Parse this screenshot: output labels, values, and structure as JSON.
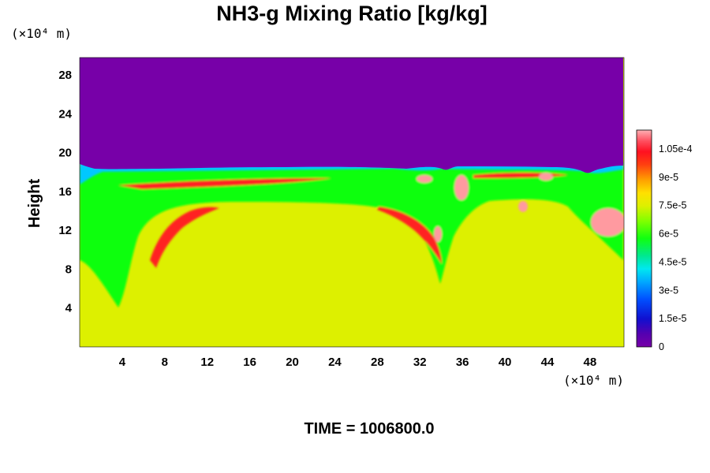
{
  "chart_data": {
    "type": "heatmap",
    "title": "NH3-g Mixing Ratio [kg/kg]",
    "ylabel": "Height",
    "x_unit": "(×10⁴ m)",
    "y_unit": "(×10⁴ m)",
    "x_ticks": [
      "4",
      "8",
      "12",
      "16",
      "20",
      "24",
      "28",
      "32",
      "36",
      "40",
      "44",
      "48"
    ],
    "x_tick_values": [
      4,
      8,
      12,
      16,
      20,
      24,
      28,
      32,
      36,
      40,
      44,
      48
    ],
    "y_ticks": [
      "4",
      "8",
      "12",
      "16",
      "20",
      "24",
      "28"
    ],
    "y_tick_values": [
      4,
      8,
      12,
      16,
      20,
      24,
      28
    ],
    "xlim": [
      0,
      51.2
    ],
    "ylim": [
      0,
      29.8
    ],
    "colorbar": {
      "range": [
        0,
        0.000115
      ],
      "labels": [
        "0",
        "1.5e-5",
        "3e-5",
        "4.5e-5",
        "6e-5",
        "7.5e-5",
        "9e-5",
        "1.05e-4"
      ],
      "label_values": [
        0,
        1.5e-05,
        3e-05,
        4.5e-05,
        6e-05,
        7.5e-05,
        9e-05,
        0.000105
      ]
    },
    "field": {
      "upper_layer_value": 0,
      "interior_value": 7.7e-05,
      "layer_top_height_min": 17.5,
      "layer_top_height_max": 19
    },
    "colors": {
      "background_region": "#7700a8",
      "interior": "#ddf000",
      "band": "#10ff10",
      "red_streak": "#ff2020",
      "pink_blob": "#ff9aa0"
    }
  },
  "footer": {
    "time_label": "TIME = 1006800.0"
  }
}
